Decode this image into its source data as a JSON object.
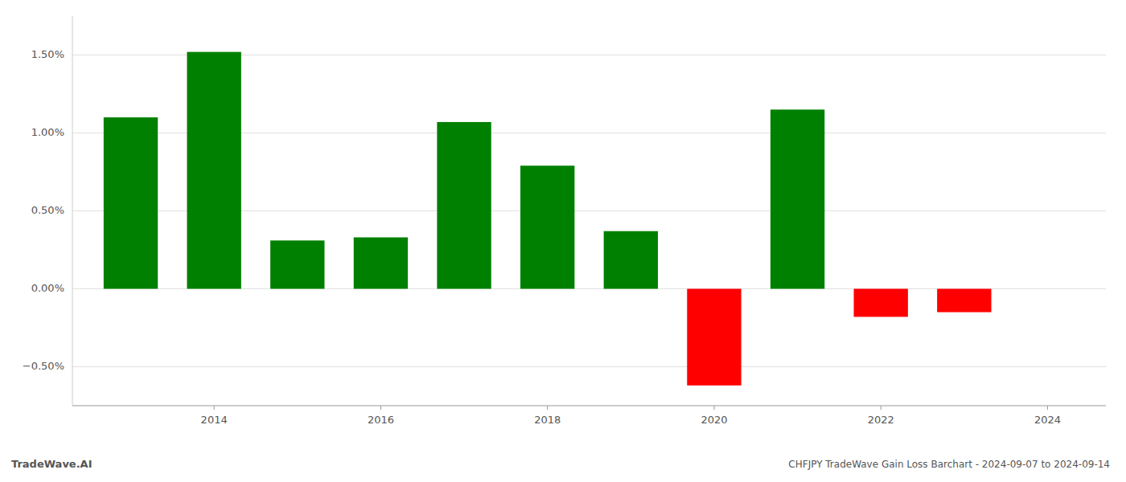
{
  "chart_data": {
    "type": "bar",
    "title": "CHFJPY TradeWave Gain Loss Barchart - 2024-09-07 to 2024-09-14",
    "annotations": [
      "TradeWave.AI"
    ],
    "x": [
      2013,
      2014,
      2015,
      2016,
      2017,
      2018,
      2019,
      2020,
      2021,
      2022,
      2023
    ],
    "values": [
      1.1,
      1.52,
      0.31,
      0.33,
      1.07,
      0.79,
      0.37,
      -0.62,
      1.15,
      -0.18,
      -0.15
    ],
    "colors": [
      "#008000",
      "#008000",
      "#008000",
      "#008000",
      "#008000",
      "#008000",
      "#008000",
      "#ff0000",
      "#008000",
      "#ff0000",
      "#ff0000"
    ],
    "xlim": [
      2012.3,
      2024.7
    ],
    "xticks": [
      2014,
      2016,
      2018,
      2020,
      2022,
      2024
    ],
    "ylim": [
      -0.75,
      1.75
    ],
    "yticks": [
      {
        "value": -0.5,
        "label": "−0.50%"
      },
      {
        "value": 0.0,
        "label": "0.00%"
      },
      {
        "value": 0.5,
        "label": "0.50%"
      },
      {
        "value": 1.0,
        "label": "1.00%"
      },
      {
        "value": 1.5,
        "label": "1.50%"
      }
    ],
    "grid": true
  }
}
